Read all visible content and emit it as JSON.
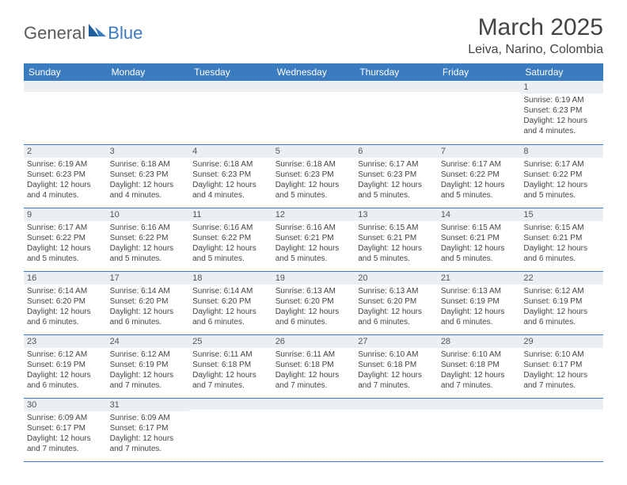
{
  "header": {
    "logo_part1": "General",
    "logo_part2": "Blue",
    "month_title": "March 2025",
    "location": "Leiva, Narino, Colombia"
  },
  "colors": {
    "header_bg": "#3b7bbf",
    "header_text": "#ffffff",
    "daynum_bg": "#eceff1",
    "cell_border": "#3b7bbf",
    "logo_gray": "#5a5a5a",
    "logo_blue": "#3b7bbf"
  },
  "day_headers": [
    "Sunday",
    "Monday",
    "Tuesday",
    "Wednesday",
    "Thursday",
    "Friday",
    "Saturday"
  ],
  "weeks": [
    [
      {
        "n": "",
        "sr": "",
        "ss": "",
        "dl": ""
      },
      {
        "n": "",
        "sr": "",
        "ss": "",
        "dl": ""
      },
      {
        "n": "",
        "sr": "",
        "ss": "",
        "dl": ""
      },
      {
        "n": "",
        "sr": "",
        "ss": "",
        "dl": ""
      },
      {
        "n": "",
        "sr": "",
        "ss": "",
        "dl": ""
      },
      {
        "n": "",
        "sr": "",
        "ss": "",
        "dl": ""
      },
      {
        "n": "1",
        "sr": "Sunrise: 6:19 AM",
        "ss": "Sunset: 6:23 PM",
        "dl": "Daylight: 12 hours and 4 minutes."
      }
    ],
    [
      {
        "n": "2",
        "sr": "Sunrise: 6:19 AM",
        "ss": "Sunset: 6:23 PM",
        "dl": "Daylight: 12 hours and 4 minutes."
      },
      {
        "n": "3",
        "sr": "Sunrise: 6:18 AM",
        "ss": "Sunset: 6:23 PM",
        "dl": "Daylight: 12 hours and 4 minutes."
      },
      {
        "n": "4",
        "sr": "Sunrise: 6:18 AM",
        "ss": "Sunset: 6:23 PM",
        "dl": "Daylight: 12 hours and 4 minutes."
      },
      {
        "n": "5",
        "sr": "Sunrise: 6:18 AM",
        "ss": "Sunset: 6:23 PM",
        "dl": "Daylight: 12 hours and 5 minutes."
      },
      {
        "n": "6",
        "sr": "Sunrise: 6:17 AM",
        "ss": "Sunset: 6:23 PM",
        "dl": "Daylight: 12 hours and 5 minutes."
      },
      {
        "n": "7",
        "sr": "Sunrise: 6:17 AM",
        "ss": "Sunset: 6:22 PM",
        "dl": "Daylight: 12 hours and 5 minutes."
      },
      {
        "n": "8",
        "sr": "Sunrise: 6:17 AM",
        "ss": "Sunset: 6:22 PM",
        "dl": "Daylight: 12 hours and 5 minutes."
      }
    ],
    [
      {
        "n": "9",
        "sr": "Sunrise: 6:17 AM",
        "ss": "Sunset: 6:22 PM",
        "dl": "Daylight: 12 hours and 5 minutes."
      },
      {
        "n": "10",
        "sr": "Sunrise: 6:16 AM",
        "ss": "Sunset: 6:22 PM",
        "dl": "Daylight: 12 hours and 5 minutes."
      },
      {
        "n": "11",
        "sr": "Sunrise: 6:16 AM",
        "ss": "Sunset: 6:22 PM",
        "dl": "Daylight: 12 hours and 5 minutes."
      },
      {
        "n": "12",
        "sr": "Sunrise: 6:16 AM",
        "ss": "Sunset: 6:21 PM",
        "dl": "Daylight: 12 hours and 5 minutes."
      },
      {
        "n": "13",
        "sr": "Sunrise: 6:15 AM",
        "ss": "Sunset: 6:21 PM",
        "dl": "Daylight: 12 hours and 5 minutes."
      },
      {
        "n": "14",
        "sr": "Sunrise: 6:15 AM",
        "ss": "Sunset: 6:21 PM",
        "dl": "Daylight: 12 hours and 5 minutes."
      },
      {
        "n": "15",
        "sr": "Sunrise: 6:15 AM",
        "ss": "Sunset: 6:21 PM",
        "dl": "Daylight: 12 hours and 6 minutes."
      }
    ],
    [
      {
        "n": "16",
        "sr": "Sunrise: 6:14 AM",
        "ss": "Sunset: 6:20 PM",
        "dl": "Daylight: 12 hours and 6 minutes."
      },
      {
        "n": "17",
        "sr": "Sunrise: 6:14 AM",
        "ss": "Sunset: 6:20 PM",
        "dl": "Daylight: 12 hours and 6 minutes."
      },
      {
        "n": "18",
        "sr": "Sunrise: 6:14 AM",
        "ss": "Sunset: 6:20 PM",
        "dl": "Daylight: 12 hours and 6 minutes."
      },
      {
        "n": "19",
        "sr": "Sunrise: 6:13 AM",
        "ss": "Sunset: 6:20 PM",
        "dl": "Daylight: 12 hours and 6 minutes."
      },
      {
        "n": "20",
        "sr": "Sunrise: 6:13 AM",
        "ss": "Sunset: 6:20 PM",
        "dl": "Daylight: 12 hours and 6 minutes."
      },
      {
        "n": "21",
        "sr": "Sunrise: 6:13 AM",
        "ss": "Sunset: 6:19 PM",
        "dl": "Daylight: 12 hours and 6 minutes."
      },
      {
        "n": "22",
        "sr": "Sunrise: 6:12 AM",
        "ss": "Sunset: 6:19 PM",
        "dl": "Daylight: 12 hours and 6 minutes."
      }
    ],
    [
      {
        "n": "23",
        "sr": "Sunrise: 6:12 AM",
        "ss": "Sunset: 6:19 PM",
        "dl": "Daylight: 12 hours and 6 minutes."
      },
      {
        "n": "24",
        "sr": "Sunrise: 6:12 AM",
        "ss": "Sunset: 6:19 PM",
        "dl": "Daylight: 12 hours and 7 minutes."
      },
      {
        "n": "25",
        "sr": "Sunrise: 6:11 AM",
        "ss": "Sunset: 6:18 PM",
        "dl": "Daylight: 12 hours and 7 minutes."
      },
      {
        "n": "26",
        "sr": "Sunrise: 6:11 AM",
        "ss": "Sunset: 6:18 PM",
        "dl": "Daylight: 12 hours and 7 minutes."
      },
      {
        "n": "27",
        "sr": "Sunrise: 6:10 AM",
        "ss": "Sunset: 6:18 PM",
        "dl": "Daylight: 12 hours and 7 minutes."
      },
      {
        "n": "28",
        "sr": "Sunrise: 6:10 AM",
        "ss": "Sunset: 6:18 PM",
        "dl": "Daylight: 12 hours and 7 minutes."
      },
      {
        "n": "29",
        "sr": "Sunrise: 6:10 AM",
        "ss": "Sunset: 6:17 PM",
        "dl": "Daylight: 12 hours and 7 minutes."
      }
    ],
    [
      {
        "n": "30",
        "sr": "Sunrise: 6:09 AM",
        "ss": "Sunset: 6:17 PM",
        "dl": "Daylight: 12 hours and 7 minutes."
      },
      {
        "n": "31",
        "sr": "Sunrise: 6:09 AM",
        "ss": "Sunset: 6:17 PM",
        "dl": "Daylight: 12 hours and 7 minutes."
      },
      {
        "n": "",
        "sr": "",
        "ss": "",
        "dl": ""
      },
      {
        "n": "",
        "sr": "",
        "ss": "",
        "dl": ""
      },
      {
        "n": "",
        "sr": "",
        "ss": "",
        "dl": ""
      },
      {
        "n": "",
        "sr": "",
        "ss": "",
        "dl": ""
      },
      {
        "n": "",
        "sr": "",
        "ss": "",
        "dl": ""
      }
    ]
  ]
}
